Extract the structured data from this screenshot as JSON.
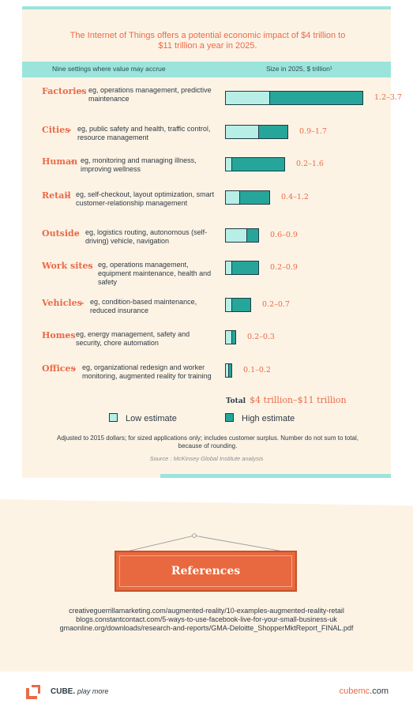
{
  "title": "The Internet of Things offers a potential economic impact of $4 trillion to $11 trillion a year in 2025.",
  "header": {
    "left": "Nine settings where value may accrue",
    "right": "Size in 2025, $ trillion¹"
  },
  "rows": [
    {
      "category": "Factories",
      "dash": "–",
      "description": "eg, operations management, predictive maintenance",
      "range": "1.2–3.7"
    },
    {
      "category": "Cities",
      "dash": "–",
      "description": "eg, public safety and health, traffic control, resource management",
      "range": "0.9–1.7"
    },
    {
      "category": "Human",
      "dash": "–",
      "description": "eg, monitoring and managing illness, improving wellness",
      "range": "0.2–1.6"
    },
    {
      "category": "Retail",
      "dash": "–",
      "description": "eg, self-checkout, layout optimization, smart customer-relationship management",
      "range": "0.4–1.2"
    },
    {
      "category": "Outside",
      "dash": "–",
      "description": "eg, logistics routing, autonomous (self-driving) vehicle, navigation",
      "range": "0.6–0.9"
    },
    {
      "category": "Work sites",
      "dash": "–",
      "description": "eg, operations management, equipment maintenance, health and safety",
      "range": "0.2–0.9"
    },
    {
      "category": "Vehicles",
      "dash": "–",
      "description": "eg, condition-based maintenance, reduced insurance",
      "range": "0.2–0.7"
    },
    {
      "category": "Homes",
      "dash": "–",
      "description": "eg, energy management, safety and security, chore automation",
      "range": "0.2–0.3"
    },
    {
      "category": "Offices",
      "dash": "–",
      "description": "eg, organizational redesign and worker monitoring, augmented reality for training",
      "range": "0.1–0.2"
    }
  ],
  "total": {
    "label": "Total",
    "value": "$4 trillion–$11 trillion"
  },
  "legend": {
    "low": "Low estimate",
    "high": "High estimate"
  },
  "note": "Adjusted to 2015 dollars; for sized applications only; includes customer surplus. Number do not sum to total, because of rounding.",
  "source": "Source : McKinsey Global Institute analysis",
  "references": {
    "heading": "References",
    "links": [
      "creativeguerrillamarketing.com/augmented-reality/10-examples-augmented-reality-retail",
      "blogs.constantcontact.com/5-ways-to-use-facebook-live-for-your-small-business-uk",
      "gmaonline.org/downloads/research-and-reports/GMA-Deloitte_ShopperMktReport_FINAL.pdf"
    ]
  },
  "footer": {
    "brand": "CUBE.",
    "tagline": "play more",
    "site_name": "cubemc",
    "site_tld": ".com"
  },
  "colors": {
    "accent": "#ea6a47",
    "low": "#b7efe7",
    "high": "#26a69a",
    "band": "#9be4dc",
    "panel": "#fdf3e5"
  },
  "icons": {
    "logo": "cube-logo-icon"
  },
  "chart_data": {
    "type": "bar",
    "categories": [
      "Factories",
      "Cities",
      "Human",
      "Retail",
      "Outside",
      "Work sites",
      "Vehicles",
      "Homes",
      "Offices"
    ],
    "series": [
      {
        "name": "Low estimate",
        "values": [
          1.2,
          0.9,
          0.2,
          0.4,
          0.6,
          0.2,
          0.2,
          0.2,
          0.1
        ]
      },
      {
        "name": "High estimate",
        "values": [
          3.7,
          1.7,
          1.6,
          1.2,
          0.9,
          0.9,
          0.7,
          0.3,
          0.2
        ]
      }
    ],
    "orientation": "horizontal",
    "xlim": [
      0,
      3.7
    ]
  }
}
